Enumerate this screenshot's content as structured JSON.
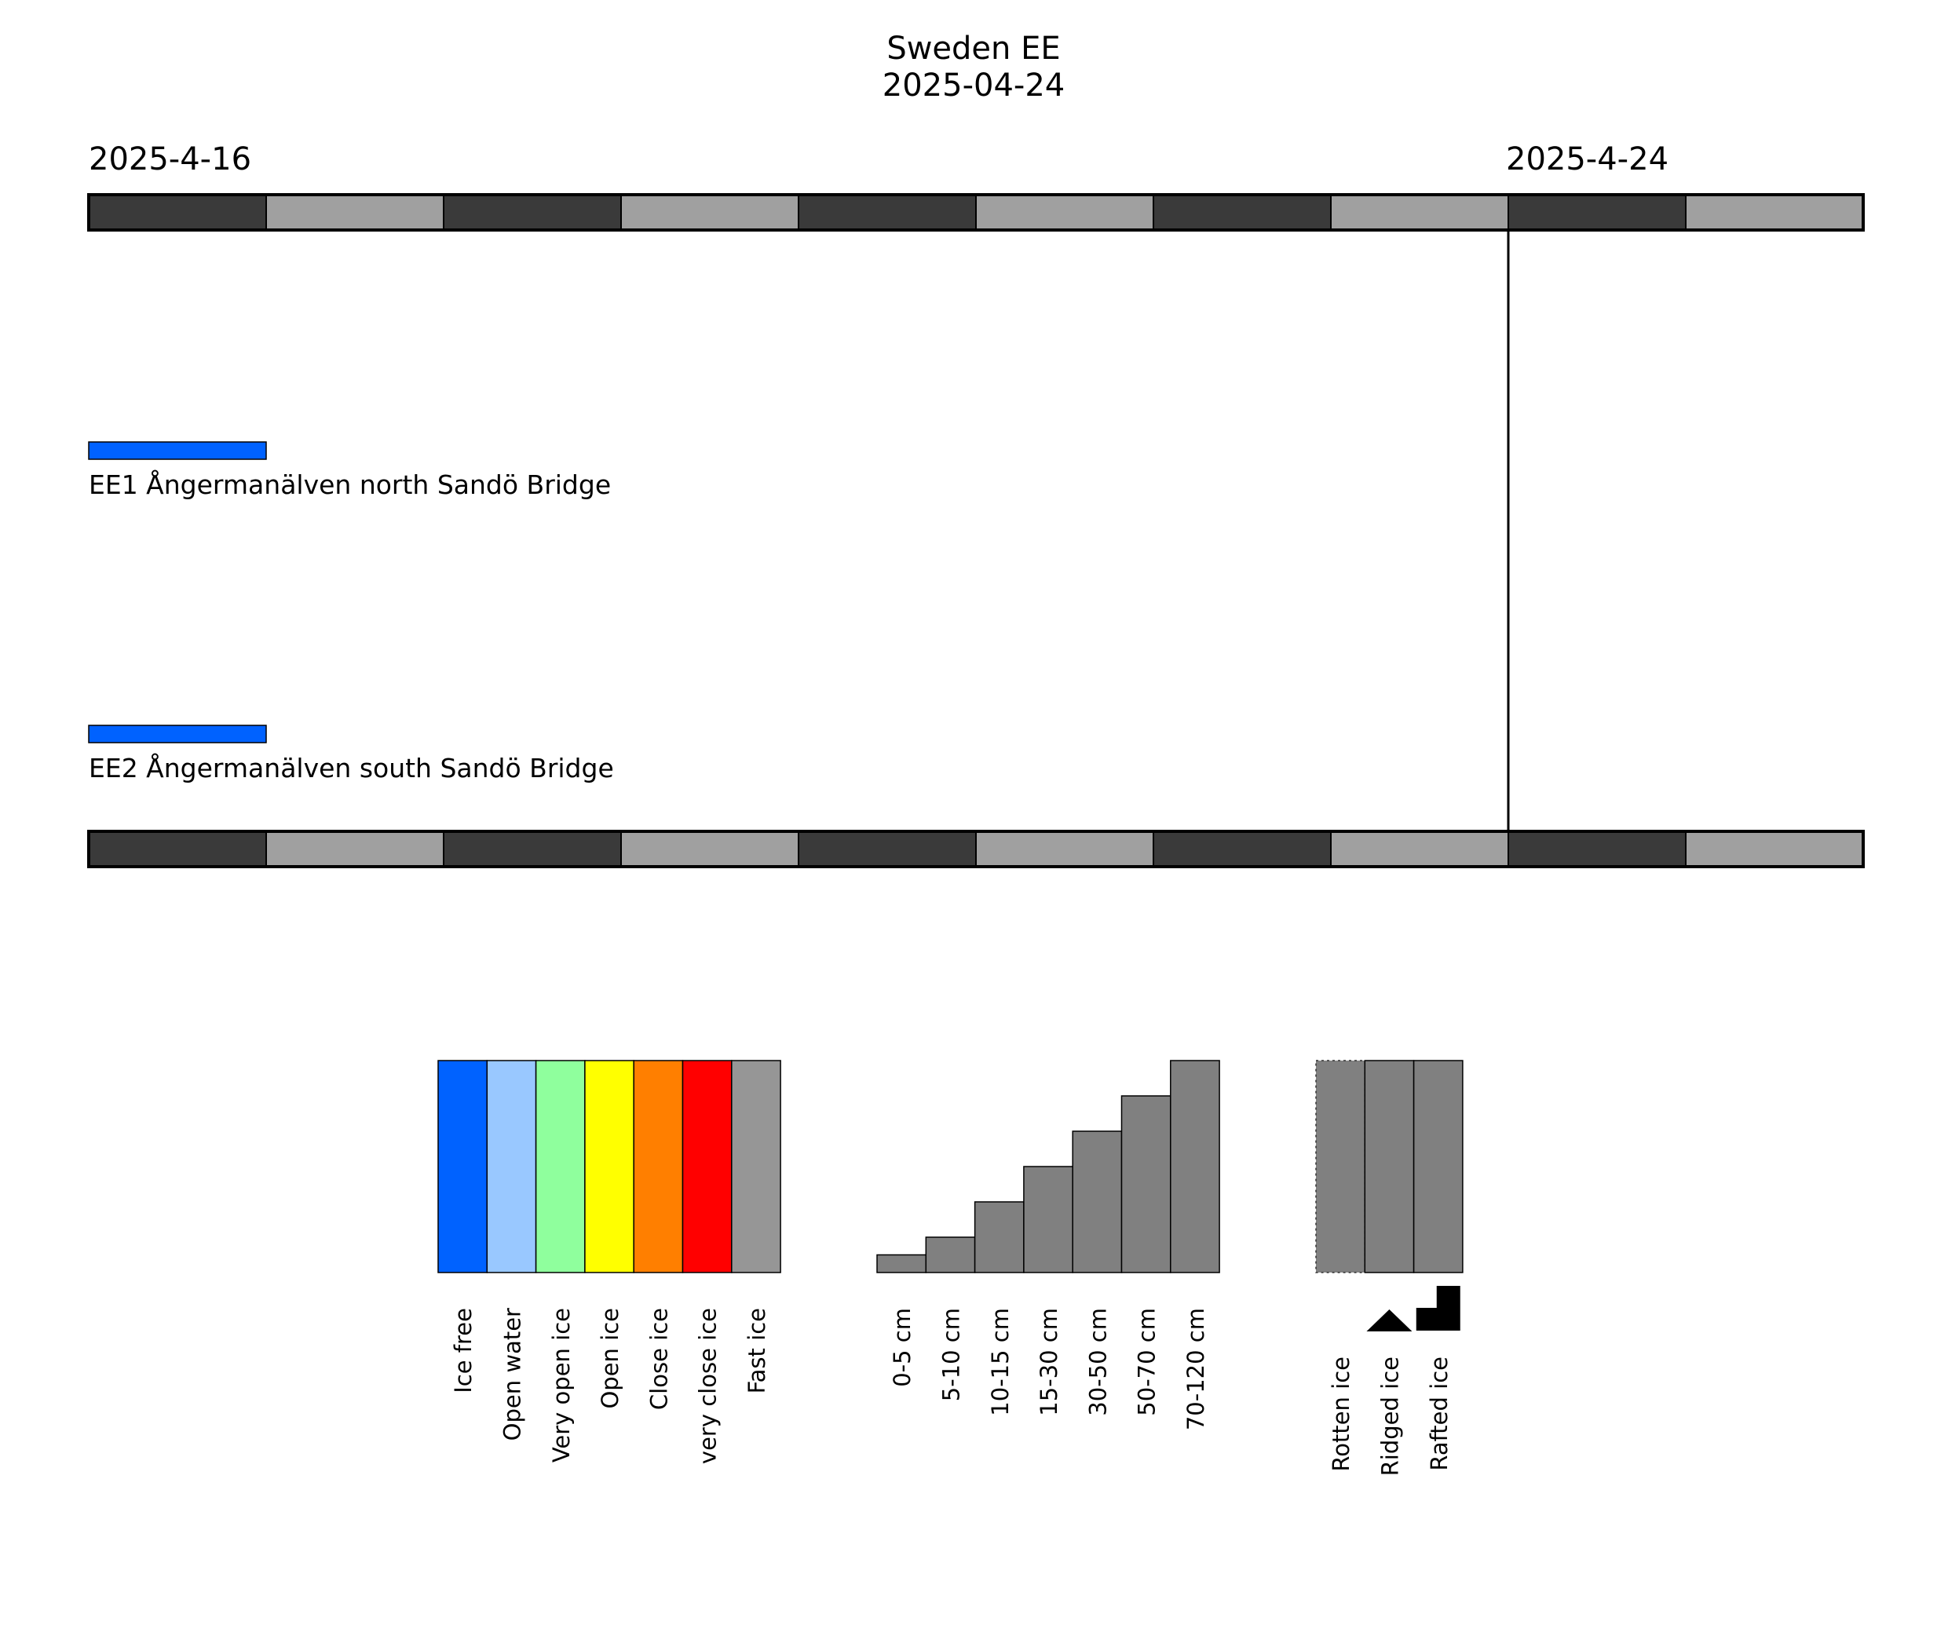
{
  "chart_data": {
    "type": "timeline",
    "title": "Sweden EE",
    "subtitle": "2025-04-24",
    "axis": {
      "start_label": "2025-4-16",
      "end_label": "2025-4-24",
      "start_date": "2025-04-16",
      "end_date": "2025-04-26",
      "marker_date": "2025-04-24",
      "day_colors": [
        "#3a3a3a",
        "#a0a0a0"
      ]
    },
    "stations": [
      {
        "label": "EE1 Ångermanälven north Sandö Bridge",
        "segments": [
          {
            "start": "2025-04-16",
            "end": "2025-04-17",
            "condition": "Ice free"
          }
        ]
      },
      {
        "label": "EE2 Ångermanälven south Sandö Bridge",
        "segments": [
          {
            "start": "2025-04-16",
            "end": "2025-04-17",
            "condition": "Ice free"
          }
        ]
      }
    ],
    "legend_concentration": [
      {
        "label": "Ice free",
        "color": "#0062ff"
      },
      {
        "label": "Open water",
        "color": "#99c8ff"
      },
      {
        "label": "Very open ice",
        "color": "#8fff9d"
      },
      {
        "label": "Open ice",
        "color": "#ffff00"
      },
      {
        "label": "Close ice",
        "color": "#ff7f00"
      },
      {
        "label": "very close ice",
        "color": "#ff0000"
      },
      {
        "label": "Fast ice",
        "color": "#969696"
      }
    ],
    "legend_thickness": {
      "color": "#808080",
      "items": [
        {
          "label": "0-5 cm",
          "level": 1
        },
        {
          "label": "5-10 cm",
          "level": 2
        },
        {
          "label": "10-15 cm",
          "level": 4
        },
        {
          "label": "15-30 cm",
          "level": 6
        },
        {
          "label": "30-50 cm",
          "level": 8
        },
        {
          "label": "50-70 cm",
          "level": 10
        },
        {
          "label": "70-120 cm",
          "level": 12
        }
      ],
      "max_level": 12
    },
    "legend_type": {
      "color": "#808080",
      "items": [
        {
          "label": "Rotten ice",
          "icon": "rotten-dotted-border"
        },
        {
          "label": "Ridged ice",
          "icon": "ridged-triangle-icon"
        },
        {
          "label": "Rafted ice",
          "icon": "rafted-step-icon"
        }
      ]
    }
  }
}
